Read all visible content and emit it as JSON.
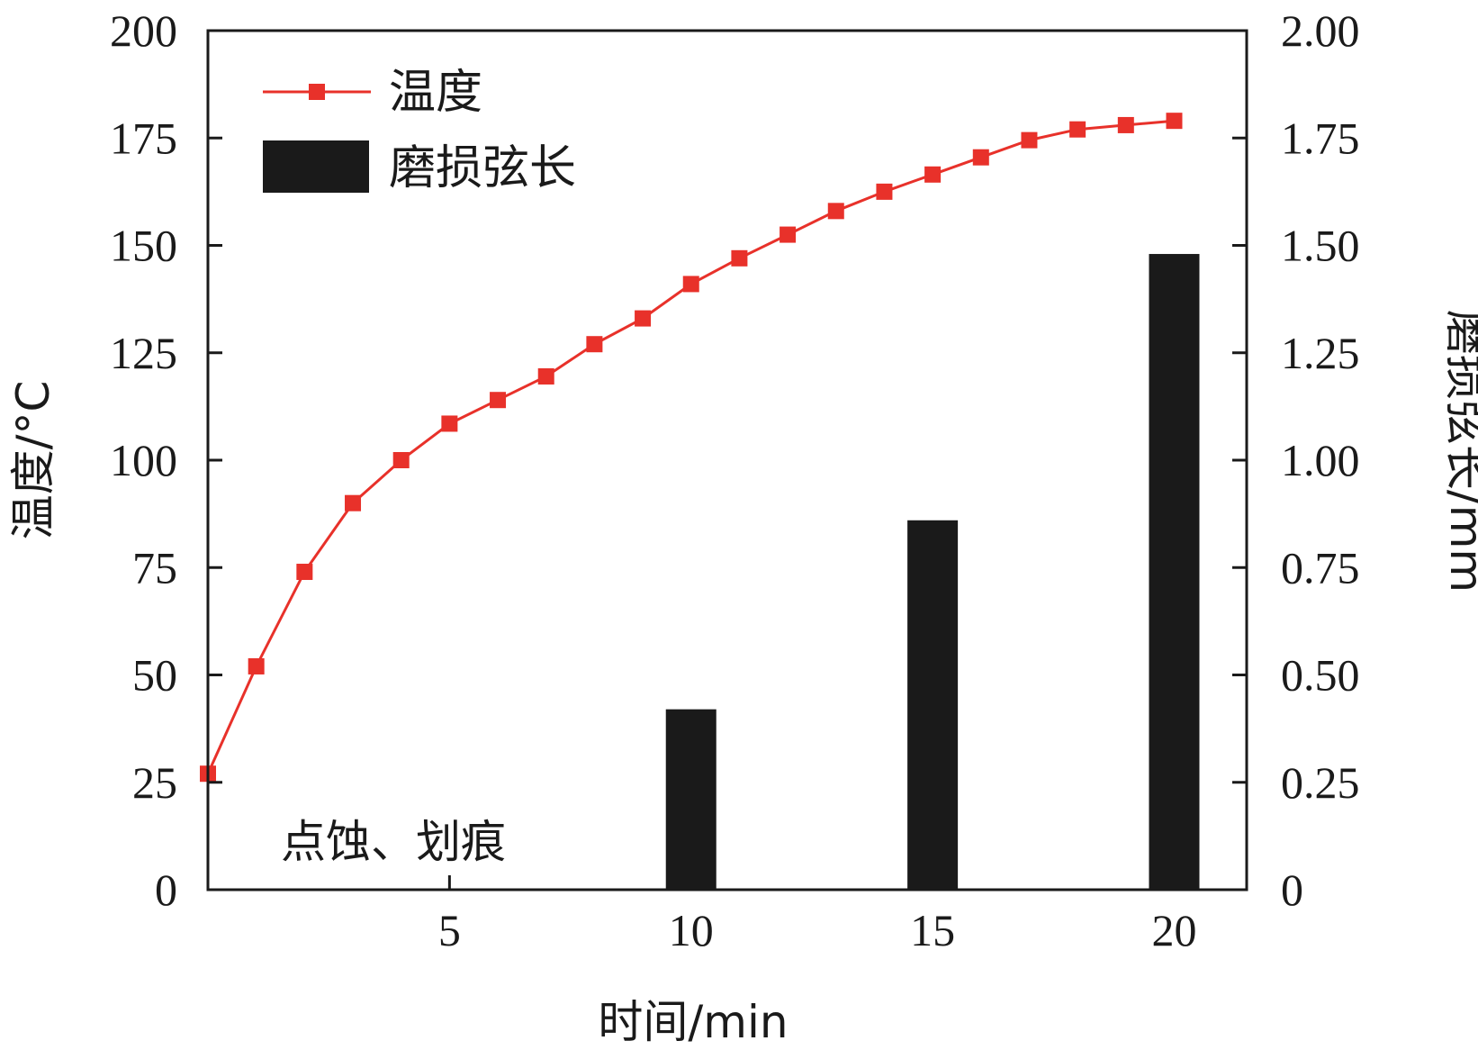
{
  "chart_data": {
    "type": "bar+line",
    "xlabel": "时间/min",
    "ylabel_left": "温度/°C",
    "ylabel_right": "磨损弦长/mm",
    "xlim": [
      0,
      21.5
    ],
    "x_ticks": [
      {
        "value": 5,
        "label": "5"
      },
      {
        "value": 10,
        "label": "10"
      },
      {
        "value": 15,
        "label": "15"
      },
      {
        "value": 20,
        "label": "20"
      }
    ],
    "ylim_left": [
      0,
      200
    ],
    "y_ticks_left": [
      {
        "value": 0,
        "label": "0"
      },
      {
        "value": 25,
        "label": "25"
      },
      {
        "value": 50,
        "label": "50"
      },
      {
        "value": 75,
        "label": "75"
      },
      {
        "value": 100,
        "label": "100"
      },
      {
        "value": 125,
        "label": "125"
      },
      {
        "value": 150,
        "label": "150"
      },
      {
        "value": 175,
        "label": "175"
      },
      {
        "value": 200,
        "label": "200"
      }
    ],
    "ylim_right": [
      0,
      2.0
    ],
    "y_ticks_right": [
      {
        "value": 0,
        "label": "0"
      },
      {
        "value": 0.25,
        "label": "0.25"
      },
      {
        "value": 0.5,
        "label": "0.50"
      },
      {
        "value": 0.75,
        "label": "0.75"
      },
      {
        "value": 1.0,
        "label": "1.00"
      },
      {
        "value": 1.25,
        "label": "1.25"
      },
      {
        "value": 1.5,
        "label": "1.50"
      },
      {
        "value": 1.75,
        "label": "1.75"
      },
      {
        "value": 2.0,
        "label": "2.00"
      }
    ],
    "series": [
      {
        "name": "温度",
        "type": "line",
        "axis": "left",
        "color": "#e8312a",
        "marker": "square",
        "x": [
          0,
          1,
          2,
          3,
          4,
          5,
          6,
          7,
          8,
          9,
          10,
          11,
          12,
          13,
          14,
          15,
          16,
          17,
          18,
          19,
          20
        ],
        "y": [
          27,
          52,
          74,
          90,
          100,
          108.5,
          114,
          119.5,
          127,
          133,
          141,
          147,
          152.5,
          158,
          162.5,
          166.5,
          170.5,
          174.5,
          177,
          178,
          179
        ]
      },
      {
        "name": "磨损弦长",
        "type": "bar",
        "axis": "right",
        "color": "#1a1a1a",
        "x": [
          10,
          15,
          20
        ],
        "y": [
          0.42,
          0.86,
          1.48
        ]
      }
    ],
    "legend": {
      "placement": "top-left"
    },
    "annotation": "点蚀、划痕",
    "grid": false
  }
}
